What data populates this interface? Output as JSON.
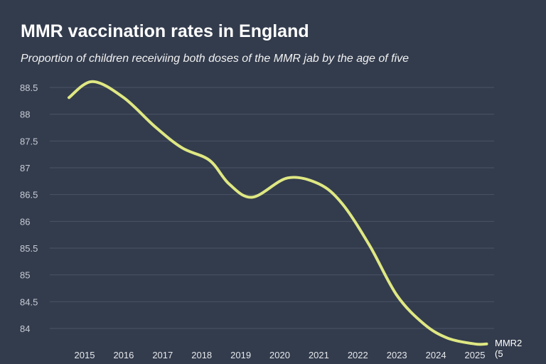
{
  "chart_data": {
    "type": "line",
    "title": "MMR vaccination rates in England",
    "subtitle": "Proportion of children receiviing both doses of the MMR jab by the age of five",
    "xlabel": "",
    "ylabel": "",
    "ylim": [
      83.8,
      88.6
    ],
    "grid": true,
    "y_ticks": [
      84,
      84.5,
      85,
      85.5,
      86,
      86.5,
      87,
      87.5,
      88,
      88.5
    ],
    "x_ticks": [
      2015,
      2016,
      2017,
      2018,
      2019,
      2020,
      2021,
      2022,
      2023,
      2024,
      2025
    ],
    "series": [
      {
        "name": "MMR2 (5",
        "label_lines": [
          "MMR2",
          "(5"
        ],
        "color": "#dfe882",
        "x": [
          2014.6,
          2015.2,
          2016.0,
          2016.8,
          2017.5,
          2018.2,
          2018.7,
          2019.3,
          2020.2,
          2021.0,
          2021.6,
          2022.3,
          2023.0,
          2023.7,
          2024.3,
          2025.0,
          2025.3
        ],
        "y": [
          88.31,
          88.61,
          88.31,
          87.77,
          87.37,
          87.14,
          86.7,
          86.45,
          86.81,
          86.7,
          86.33,
          85.55,
          84.62,
          84.08,
          83.82,
          83.71,
          83.71
        ]
      }
    ]
  }
}
